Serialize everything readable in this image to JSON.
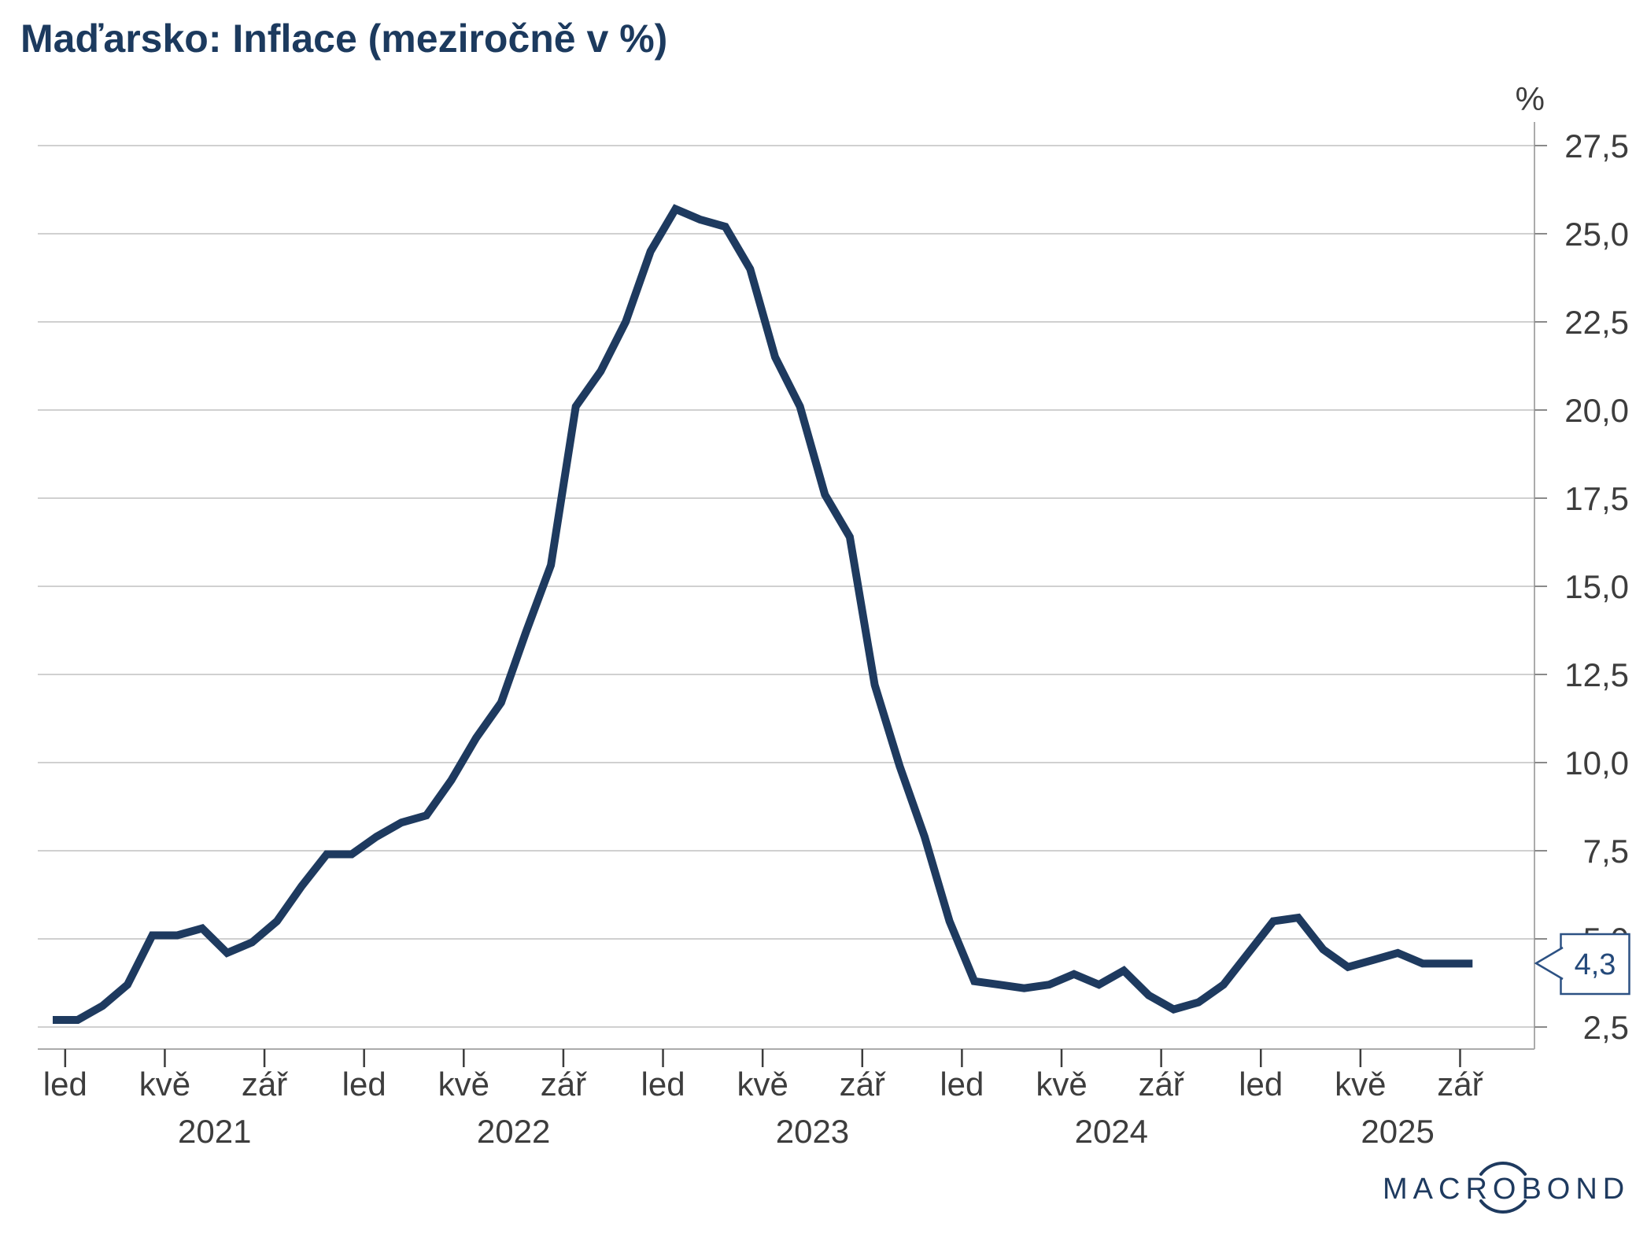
{
  "title": "Maďarsko: Inflace (meziročně v %)",
  "colors": {
    "navy_line": "#1e3a5f",
    "title_navy": "#1c3a5e",
    "label_gray": "#3d3d3d",
    "grid_gray": "#c9c9c9",
    "spine_gray": "#ababab",
    "ytick_gray": "#8a8a8a",
    "callout_border": "#2c5183",
    "callout_text": "#24497a",
    "background": "#ffffff"
  },
  "logo": {
    "text": "MACROBOND"
  },
  "callout": {
    "value": "4,3"
  },
  "chart_data": {
    "type": "line",
    "title": "Maďarsko: Inflace (meziročně v %)",
    "unit": "%",
    "frequency": "monthly",
    "start": "2020-12",
    "end": "2025-09",
    "values": [
      2.7,
      2.7,
      3.1,
      3.7,
      5.1,
      5.1,
      5.3,
      4.6,
      4.9,
      5.5,
      6.5,
      7.4,
      7.4,
      7.9,
      8.3,
      8.5,
      9.5,
      10.7,
      11.7,
      13.7,
      15.6,
      20.1,
      21.1,
      22.5,
      24.5,
      25.7,
      25.4,
      25.2,
      24.0,
      21.5,
      20.1,
      17.6,
      16.4,
      12.2,
      9.9,
      7.9,
      5.5,
      3.8,
      3.7,
      3.6,
      3.7,
      4.0,
      3.7,
      4.1,
      3.4,
      3.0,
      3.2,
      3.7,
      4.6,
      5.5,
      5.6,
      4.7,
      4.2,
      4.4,
      4.6,
      4.3,
      4.3,
      4.3
    ],
    "last_value_label": "4,3",
    "grid": true,
    "legend": "none",
    "y_axis": {
      "unit": "%",
      "side": "right",
      "min_gridline": 2.5,
      "max_gridline": 27.5,
      "step": 2.5,
      "ticks": [
        {
          "v": 2.5,
          "label": "2,5"
        },
        {
          "v": 5.0,
          "label": "5,0"
        },
        {
          "v": 7.5,
          "label": "7,5"
        },
        {
          "v": 10.0,
          "label": "10,0"
        },
        {
          "v": 12.5,
          "label": "12,5"
        },
        {
          "v": 15.0,
          "label": "15,0"
        },
        {
          "v": 17.5,
          "label": "17,5"
        },
        {
          "v": 20.0,
          "label": "20,0"
        },
        {
          "v": 22.5,
          "label": "22,5"
        },
        {
          "v": 25.0,
          "label": "25,0"
        },
        {
          "v": 27.5,
          "label": "27,5"
        }
      ]
    },
    "x_axis": {
      "ticks": [
        {
          "m": 1,
          "label": "led"
        },
        {
          "m": 5,
          "label": "kvě"
        },
        {
          "m": 9,
          "label": "zář"
        },
        {
          "m": 13,
          "label": "led"
        },
        {
          "m": 17,
          "label": "kvě"
        },
        {
          "m": 21,
          "label": "zář"
        },
        {
          "m": 25,
          "label": "led"
        },
        {
          "m": 29,
          "label": "kvě"
        },
        {
          "m": 33,
          "label": "zář"
        },
        {
          "m": 37,
          "label": "led"
        },
        {
          "m": 41,
          "label": "kvě"
        },
        {
          "m": 45,
          "label": "zář"
        },
        {
          "m": 49,
          "label": "led"
        },
        {
          "m": 53,
          "label": "kvě"
        },
        {
          "m": 57,
          "label": "zář"
        }
      ],
      "years": [
        "2021",
        "2022",
        "2023",
        "2024",
        "2025"
      ]
    }
  }
}
